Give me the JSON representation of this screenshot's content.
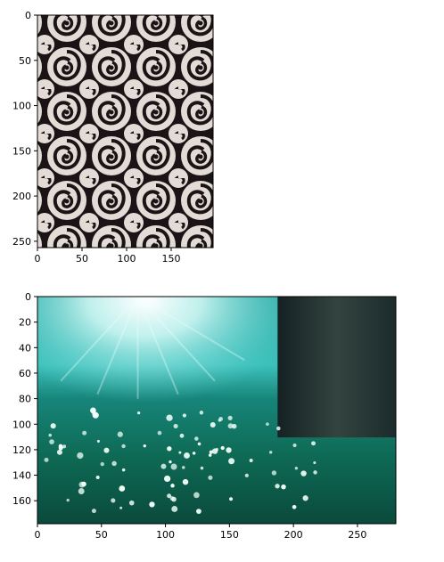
{
  "chart_data": [
    {
      "type": "image",
      "content": "black-and-white rose pattern",
      "xlim": [
        0,
        197
      ],
      "ylim": [
        257,
        0
      ],
      "xticks": [
        0,
        50,
        100,
        150
      ],
      "yticks": [
        0,
        50,
        100,
        150,
        200,
        250
      ],
      "colors": {
        "dark": "#1a1416",
        "light": "#e3dcd6"
      }
    },
    {
      "type": "image",
      "content": "teal forest meadow with white flowers, sunlight and tree trunk",
      "xlim": [
        0,
        280
      ],
      "ylim": [
        178,
        0
      ],
      "xticks": [
        0,
        50,
        100,
        150,
        200,
        250
      ],
      "yticks": [
        0,
        20,
        40,
        60,
        80,
        100,
        120,
        140,
        160
      ],
      "colors": {
        "sky": "#5fd6d2",
        "grass": "#0f6a52",
        "trunk": "#1f2a2c"
      }
    }
  ]
}
